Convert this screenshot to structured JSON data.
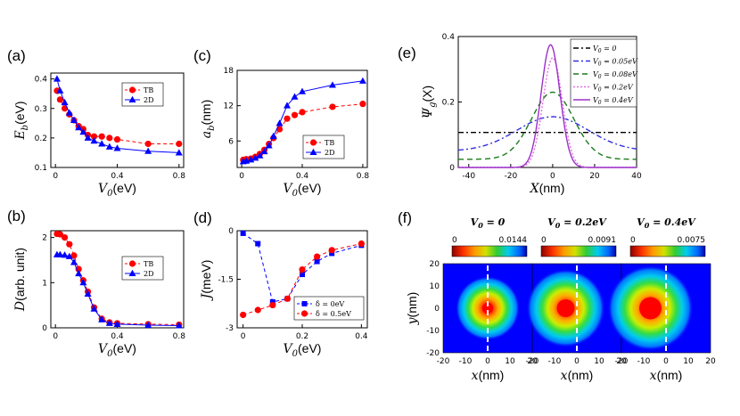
{
  "chart_data": [
    {
      "id": "a",
      "panel_label": "(a)",
      "type": "line",
      "xlabel_sym": "V",
      "xlabel_sub": "0",
      "xlabel_unit": "(eV)",
      "ylabel_sym": "E",
      "ylabel_sub": "b",
      "ylabel_unit": "(eV)",
      "xlim": [
        -0.03,
        0.83
      ],
      "ylim": [
        0.1,
        0.42
      ],
      "xticks": [
        "0",
        "0.4",
        "0.8"
      ],
      "xtick_values": [
        0,
        0.4,
        0.8
      ],
      "yticks": [
        "0.1",
        "0.2",
        "0.3",
        "0.4"
      ],
      "ytick_values": [
        0.1,
        0.2,
        0.3,
        0.4
      ],
      "legend_position": "top-right",
      "series": [
        {
          "name": "TB",
          "color": "#ff0000",
          "marker": "circle",
          "dashed": true,
          "x": [
            0.01,
            0.03,
            0.06,
            0.09,
            0.12,
            0.15,
            0.18,
            0.21,
            0.25,
            0.3,
            0.35,
            0.4,
            0.6,
            0.8
          ],
          "y": [
            0.36,
            0.33,
            0.3,
            0.28,
            0.26,
            0.24,
            0.23,
            0.21,
            0.205,
            0.205,
            0.2,
            0.195,
            0.18,
            0.18
          ]
        },
        {
          "name": "2D",
          "color": "#0000ff",
          "marker": "triangle",
          "dashed": false,
          "x": [
            0.01,
            0.03,
            0.06,
            0.09,
            0.12,
            0.15,
            0.18,
            0.21,
            0.25,
            0.3,
            0.35,
            0.4,
            0.6,
            0.8
          ],
          "y": [
            0.4,
            0.36,
            0.32,
            0.285,
            0.26,
            0.235,
            0.22,
            0.2,
            0.19,
            0.18,
            0.17,
            0.165,
            0.155,
            0.15
          ]
        }
      ]
    },
    {
      "id": "b",
      "panel_label": "(b)",
      "type": "line",
      "xlabel_sym": "V",
      "xlabel_sub": "0",
      "xlabel_unit": "(eV)",
      "ylabel_sym": "D",
      "ylabel_sub": "",
      "ylabel_unit": "(arb. unit)",
      "xlim": [
        -0.03,
        0.83
      ],
      "ylim": [
        0,
        2.15
      ],
      "xticks": [
        "0",
        "0.4",
        "0.8"
      ],
      "xtick_values": [
        0,
        0.4,
        0.8
      ],
      "yticks": [
        "0",
        "1",
        "2"
      ],
      "ytick_values": [
        0,
        1,
        2
      ],
      "legend_position": "top-right",
      "series": [
        {
          "name": "TB",
          "color": "#ff0000",
          "marker": "circle",
          "dashed": true,
          "x": [
            0.01,
            0.03,
            0.06,
            0.09,
            0.12,
            0.15,
            0.18,
            0.21,
            0.25,
            0.3,
            0.35,
            0.4,
            0.6,
            0.8
          ],
          "y": [
            2.08,
            2.07,
            2.0,
            1.85,
            1.6,
            1.3,
            1.05,
            0.8,
            0.45,
            0.2,
            0.12,
            0.1,
            0.08,
            0.07
          ]
        },
        {
          "name": "2D",
          "color": "#0000ff",
          "marker": "triangle",
          "dashed": false,
          "x": [
            0.01,
            0.03,
            0.06,
            0.09,
            0.12,
            0.15,
            0.18,
            0.21,
            0.25,
            0.3,
            0.35,
            0.4,
            0.6,
            0.8
          ],
          "y": [
            1.62,
            1.62,
            1.61,
            1.58,
            1.45,
            1.2,
            1.0,
            0.75,
            0.42,
            0.18,
            0.1,
            0.08,
            0.06,
            0.05
          ]
        }
      ]
    },
    {
      "id": "c",
      "panel_label": "(c)",
      "type": "line",
      "xlabel_sym": "V",
      "xlabel_sub": "0",
      "xlabel_unit": "(eV)",
      "ylabel_sym": "a",
      "ylabel_sub": "b",
      "ylabel_unit": "(nm)",
      "xlim": [
        -0.03,
        0.83
      ],
      "ylim": [
        1.5,
        18
      ],
      "xticks": [
        "0",
        "0.4",
        "0.8"
      ],
      "xtick_values": [
        0,
        0.4,
        0.8
      ],
      "yticks": [
        "6",
        "12",
        "18"
      ],
      "ytick_values": [
        6,
        12,
        18
      ],
      "legend_position": "bottom-right",
      "series": [
        {
          "name": "TB",
          "color": "#ff0000",
          "marker": "circle",
          "dashed": true,
          "x": [
            0.01,
            0.03,
            0.06,
            0.09,
            0.12,
            0.15,
            0.18,
            0.21,
            0.25,
            0.3,
            0.35,
            0.4,
            0.6,
            0.8
          ],
          "y": [
            2.8,
            2.9,
            3.0,
            3.3,
            3.8,
            4.5,
            5.5,
            6.5,
            8.0,
            9.8,
            10.4,
            10.9,
            11.8,
            12.3
          ]
        },
        {
          "name": "2D",
          "color": "#0000ff",
          "marker": "triangle",
          "dashed": false,
          "x": [
            0.01,
            0.03,
            0.06,
            0.09,
            0.12,
            0.15,
            0.18,
            0.21,
            0.25,
            0.3,
            0.35,
            0.4,
            0.6,
            0.8
          ],
          "y": [
            2.5,
            2.6,
            2.8,
            3.1,
            3.5,
            4.2,
            5.2,
            6.8,
            9.0,
            12.0,
            13.5,
            14.4,
            15.5,
            16.2
          ]
        }
      ]
    },
    {
      "id": "d",
      "panel_label": "(d)",
      "type": "line",
      "xlabel_sym": "V",
      "xlabel_sub": "0",
      "xlabel_unit": "(eV)",
      "ylabel_sym": "J",
      "ylabel_sub": "",
      "ylabel_unit": "(meV)",
      "xlim": [
        -0.02,
        0.42
      ],
      "ylim": [
        -3,
        0
      ],
      "xticks": [
        "0",
        "0.2",
        "0.4"
      ],
      "xtick_values": [
        0,
        0.2,
        0.4
      ],
      "yticks": [
        "0",
        "-1.5",
        "-3"
      ],
      "ytick_values": [
        0,
        -1.5,
        -3
      ],
      "legend_position": "bottom-right",
      "series": [
        {
          "name": "δ = 0eV",
          "color": "#0000ff",
          "marker": "square",
          "dashed": true,
          "x": [
            0,
            0.05,
            0.1,
            0.15,
            0.2,
            0.25,
            0.3,
            0.4
          ],
          "y": [
            -0.08,
            -0.4,
            -2.2,
            -2.1,
            -1.35,
            -0.95,
            -0.7,
            -0.45
          ]
        },
        {
          "name": "δ = 0.5eV",
          "color": "#ff0000",
          "marker": "circle",
          "dashed": true,
          "x": [
            0,
            0.05,
            0.1,
            0.15,
            0.2,
            0.25,
            0.3,
            0.4
          ],
          "y": [
            -2.6,
            -2.45,
            -2.3,
            -2.1,
            -1.2,
            -0.8,
            -0.6,
            -0.4
          ]
        }
      ]
    },
    {
      "id": "e",
      "panel_label": "(e)",
      "type": "line",
      "xlabel_sym": "X",
      "xlabel_sub": "",
      "xlabel_unit": "(nm)",
      "ylabel_sym": "Ψ",
      "ylabel_sub": "g",
      "ylabel_unit": "(X)",
      "xlim": [
        -45,
        40
      ],
      "ylim": [
        0,
        0.4
      ],
      "xticks": [
        "-40",
        "-20",
        "0",
        "20",
        "40"
      ],
      "xtick_values": [
        -40,
        -20,
        0,
        20,
        40
      ],
      "yticks": [
        "0",
        "0.2",
        "0.4"
      ],
      "ytick_values": [
        0,
        0.2,
        0.4
      ],
      "legend_position": "top-right",
      "series": [
        {
          "name": "V0 = 0",
          "label_main": "V",
          "label_sub": "0",
          "label_rest": " = 0",
          "color": "#000000",
          "style": "dashdot",
          "x0": 0,
          "amp": 0.107,
          "sigma": 1000,
          "base": 0
        },
        {
          "name": "V0 = 0.05eV",
          "label_main": "V",
          "label_sub": "0",
          "label_rest": " = 0.05eV",
          "color": "#3030e0",
          "style": "dashdot",
          "x0": 0,
          "amp": 0.105,
          "sigma": 17,
          "base": 0.05
        },
        {
          "name": "V0 = 0.08eV",
          "label_main": "V",
          "label_sub": "0",
          "label_rest": " = 0.08eV",
          "color": "#1a7a1a",
          "style": "dashed",
          "x0": 0,
          "amp": 0.205,
          "sigma": 10,
          "base": 0.025
        },
        {
          "name": "V0 = 0.2eV",
          "label_main": "V",
          "label_sub": "0",
          "label_rest": " = 0.2eV",
          "color": "#e070e0",
          "style": "dotted",
          "x0": 0,
          "amp": 0.335,
          "sigma": 4.6,
          "base": 0
        },
        {
          "name": "V0 = 0.4eV",
          "label_main": "V",
          "label_sub": "0",
          "label_rest": " = 0.4eV",
          "color": "#9b30c8",
          "style": "solid",
          "x0": -1,
          "amp": 0.375,
          "sigma": 4.5,
          "base": 0
        }
      ]
    },
    {
      "id": "f",
      "panel_label": "(f)",
      "type": "heatmap",
      "xlabel_sym": "x",
      "xlabel_unit": "(nm)",
      "ylabel_sym": "y",
      "ylabel_unit": "(nm)",
      "xlim": [
        -20,
        20
      ],
      "ylim": [
        -20,
        20
      ],
      "xticks": [
        "-20",
        "-10",
        "0",
        "10",
        "20"
      ],
      "xtick_values": [
        -20,
        -10,
        0,
        10,
        20
      ],
      "yticks": [
        "20",
        "10",
        "0",
        "-10",
        "-20"
      ],
      "ytick_values": [
        20,
        10,
        0,
        -10,
        -20
      ],
      "maps": [
        {
          "title_main": "V",
          "title_sub": "0",
          "title_rest": " = 0",
          "cb_min": "0",
          "cb_max": "0.0144",
          "center_x": 0,
          "center_y": 0,
          "core_radius": 2.5,
          "glow_radius": 9
        },
        {
          "title_main": "V",
          "title_sub": "0",
          "title_rest": " = 0.2eV",
          "cb_min": "0",
          "cb_max": "0.0091",
          "center_x": -5,
          "center_y": 0,
          "core_radius": 4,
          "glow_radius": 11
        },
        {
          "title_main": "V",
          "title_sub": "0",
          "title_rest": " = 0.4eV",
          "cb_min": "0",
          "cb_max": "0.0075",
          "center_x": -7,
          "center_y": 0,
          "core_radius": 5,
          "glow_radius": 12
        }
      ]
    }
  ]
}
